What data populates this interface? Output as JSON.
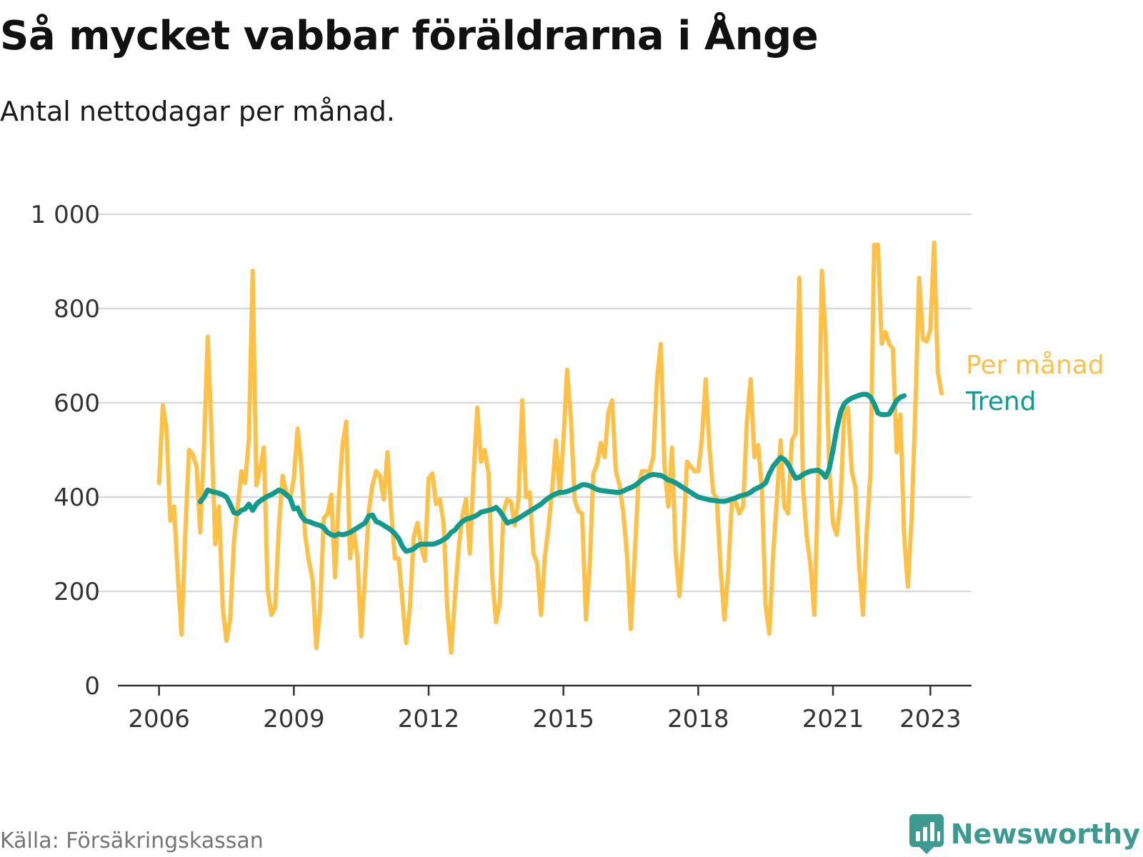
{
  "title": "Så mycket vabbar föräldrarna i Ånge",
  "subtitle": "Antal nettodagar per månad.",
  "source": "Källa: Försäkringskassan",
  "brand": "Newsworthy",
  "colors": {
    "monthly": "#fec045",
    "trend": "#0f9b8e",
    "grid": "#d9d9d9",
    "axis": "#333333",
    "brand": "#3d9a8f"
  },
  "chart_data": {
    "type": "line",
    "ylim": [
      0,
      1000
    ],
    "yticks": [
      0,
      200,
      400,
      600,
      800,
      1000
    ],
    "ytick_labels": [
      "0",
      "200",
      "400",
      "600",
      "800",
      "1 000"
    ],
    "xlim": [
      "2005-02",
      "2024-02"
    ],
    "xticks": [
      "2006-01",
      "2009-01",
      "2012-01",
      "2015-01",
      "2018-01",
      "2021-01",
      "2023-03"
    ],
    "xtick_labels": [
      "2006",
      "2009",
      "2012",
      "2015",
      "2018",
      "2021",
      "2023"
    ],
    "grid": true,
    "legend": "right, end of lines",
    "series": [
      {
        "name": "Per månad",
        "color": "#fec045",
        "start": "2006-01",
        "values": [
          430,
          595,
          545,
          350,
          380,
          235,
          108,
          320,
          500,
          490,
          465,
          325,
          505,
          740,
          540,
          300,
          380,
          165,
          95,
          140,
          305,
          380,
          455,
          430,
          525,
          880,
          425,
          460,
          505,
          205,
          150,
          165,
          335,
          445,
          410,
          395,
          440,
          545,
          465,
          320,
          265,
          225,
          80,
          160,
          355,
          365,
          405,
          230,
          395,
          510,
          560,
          270,
          330,
          270,
          105,
          230,
          370,
          425,
          455,
          445,
          395,
          495,
          370,
          270,
          270,
          180,
          90,
          165,
          315,
          345,
          295,
          265,
          440,
          450,
          385,
          395,
          345,
          160,
          70,
          185,
          290,
          360,
          395,
          280,
          445,
          590,
          475,
          500,
          450,
          230,
          135,
          175,
          370,
          395,
          390,
          340,
          395,
          605,
          400,
          410,
          280,
          260,
          150,
          270,
          335,
          415,
          520,
          405,
          520,
          670,
          565,
          395,
          370,
          365,
          140,
          250,
          450,
          470,
          515,
          485,
          580,
          605,
          455,
          425,
          365,
          275,
          120,
          270,
          425,
          455,
          455,
          455,
          485,
          650,
          725,
          465,
          380,
          505,
          280,
          190,
          305,
          475,
          465,
          455,
          455,
          525,
          650,
          505,
          410,
          395,
          245,
          140,
          240,
          395,
          390,
          365,
          380,
          560,
          650,
          485,
          510,
          420,
          170,
          110,
          275,
          395,
          520,
          380,
          365,
          520,
          535,
          865,
          420,
          315,
          255,
          150,
          420,
          880,
          745,
          460,
          345,
          320,
          390,
          580,
          590,
          455,
          420,
          250,
          150,
          325,
          450,
          935,
          935,
          725,
          750,
          725,
          715,
          495,
          575,
          315,
          210,
          355,
          590,
          865,
          735,
          730,
          755,
          940,
          665,
          620
        ]
      },
      {
        "name": "Trend",
        "color": "#0f9b8e",
        "start": "2006-12",
        "values": [
          390,
          400,
          415,
          412,
          410,
          408,
          405,
          400,
          385,
          367,
          365,
          372,
          375,
          385,
          372,
          385,
          392,
          397,
          402,
          405,
          410,
          415,
          412,
          405,
          398,
          375,
          377,
          360,
          350,
          348,
          345,
          342,
          340,
          335,
          325,
          320,
          318,
          322,
          320,
          322,
          325,
          330,
          335,
          340,
          345,
          360,
          362,
          348,
          345,
          340,
          335,
          330,
          322,
          312,
          295,
          285,
          287,
          290,
          297,
          300,
          300,
          300,
          300,
          302,
          305,
          310,
          315,
          325,
          330,
          340,
          348,
          353,
          355,
          358,
          362,
          368,
          370,
          372,
          374,
          378,
          370,
          358,
          345,
          348,
          350,
          355,
          360,
          365,
          370,
          375,
          380,
          385,
          392,
          398,
          403,
          407,
          410,
          410,
          412,
          415,
          418,
          422,
          426,
          426,
          424,
          420,
          416,
          414,
          413,
          412,
          411,
          410,
          410,
          413,
          417,
          420,
          424,
          430,
          437,
          442,
          446,
          448,
          447,
          446,
          442,
          436,
          434,
          430,
          425,
          420,
          415,
          410,
          405,
          400,
          398,
          396,
          394,
          393,
          392,
          391,
          391,
          393,
          396,
          398,
          402,
          404,
          406,
          410,
          416,
          420,
          424,
          430,
          450,
          465,
          475,
          484,
          480,
          470,
          455,
          440,
          442,
          448,
          452,
          455,
          456,
          457,
          452,
          442,
          460,
          500,
          545,
          580,
          598,
          605,
          610,
          613,
          616,
          618,
          618,
          612,
          598,
          578,
          575,
          575,
          576,
          590,
          605,
          612,
          615
        ]
      }
    ]
  }
}
